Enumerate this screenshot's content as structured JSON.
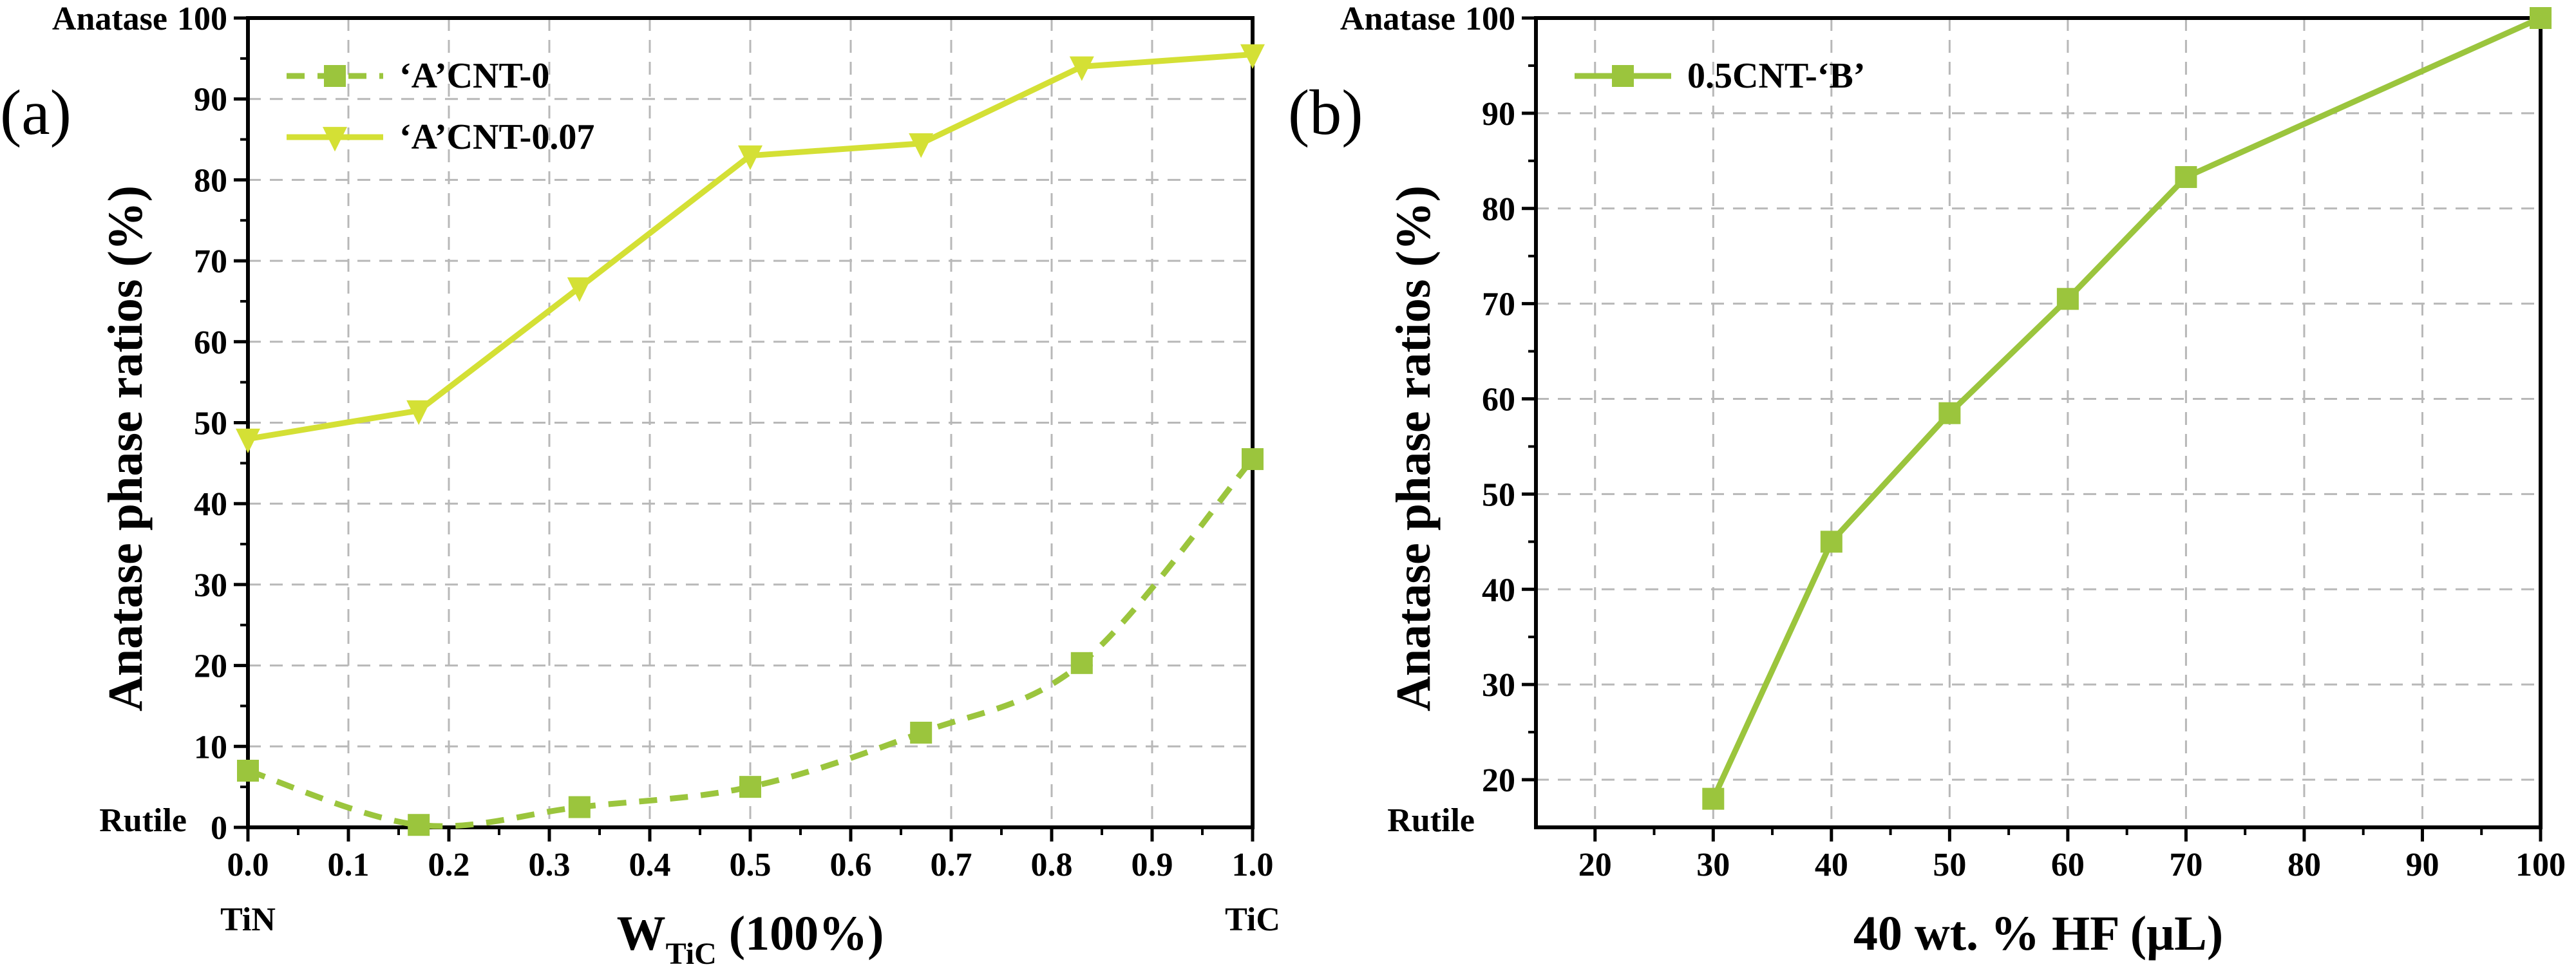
{
  "chart_data": [
    {
      "type": "line",
      "panel_label": "(a)",
      "xlabel_main": "W",
      "xlabel_sub": "TiC",
      "xlabel_tail": " (100%)",
      "ylabel": "Anatase phase ratios (%)",
      "xlim": [
        0,
        1
      ],
      "ylim": [
        0,
        100
      ],
      "xticks": [
        0.0,
        0.1,
        0.2,
        0.3,
        0.4,
        0.5,
        0.6,
        0.7,
        0.8,
        0.9,
        1.0
      ],
      "xtick_labels": [
        "0.0",
        "0.1",
        "0.2",
        "0.3",
        "0.4",
        "0.5",
        "0.6",
        "0.7",
        "0.8",
        "0.9",
        "1.0"
      ],
      "yticks": [
        0,
        10,
        20,
        30,
        40,
        50,
        60,
        70,
        80,
        90,
        100
      ],
      "ytick_labels": [
        "0",
        "10",
        "20",
        "30",
        "40",
        "50",
        "60",
        "70",
        "80",
        "90",
        "100"
      ],
      "y_top_label": "Anatase",
      "y_bottom_label": "Rutile",
      "x_left_label": "TiN",
      "x_right_label": "TiC",
      "grid": true,
      "legend_position": "top-left",
      "series": [
        {
          "name": "‘A’CNT-0",
          "marker": "square",
          "line_style": "dashed",
          "smooth": true,
          "color": "#9bc53d",
          "x": [
            0.0,
            0.17,
            0.33,
            0.5,
            0.67,
            0.83,
            1.0
          ],
          "y": [
            7.0,
            0.3,
            2.5,
            5.0,
            11.7,
            20.3,
            45.5
          ]
        },
        {
          "name": "‘A’CNT-0.07",
          "marker": "triangle-down",
          "line_style": "solid",
          "smooth": false,
          "color": "#d4e035",
          "x": [
            0.0,
            0.17,
            0.33,
            0.5,
            0.67,
            0.83,
            1.0
          ],
          "y": [
            48.0,
            51.5,
            66.7,
            83.0,
            84.5,
            94.0,
            95.5
          ]
        }
      ]
    },
    {
      "type": "line",
      "panel_label": "(b)",
      "xlabel": "40 wt. % HF (μL)",
      "ylabel": "Anatase phase ratios (%)",
      "xlim": [
        15,
        100
      ],
      "ylim": [
        15,
        100
      ],
      "xticks": [
        20,
        30,
        40,
        50,
        60,
        70,
        80,
        90,
        100
      ],
      "xtick_labels": [
        "20",
        "30",
        "40",
        "50",
        "60",
        "70",
        "80",
        "90",
        "100"
      ],
      "yticks": [
        20,
        30,
        40,
        50,
        60,
        70,
        80,
        90,
        100
      ],
      "ytick_labels": [
        "20",
        "30",
        "40",
        "50",
        "60",
        "70",
        "80",
        "90",
        "100"
      ],
      "y_top_label": "Anatase",
      "y_bottom_label": "Rutile",
      "grid": true,
      "legend_position": "top-left",
      "series": [
        {
          "name": "0.5CNT-‘B’",
          "marker": "square",
          "line_style": "solid",
          "smooth": false,
          "color": "#9bc53d",
          "x": [
            30,
            40,
            50,
            60,
            70,
            100
          ],
          "y": [
            18.0,
            45.0,
            58.5,
            70.5,
            83.3,
            100.0
          ]
        }
      ]
    }
  ]
}
